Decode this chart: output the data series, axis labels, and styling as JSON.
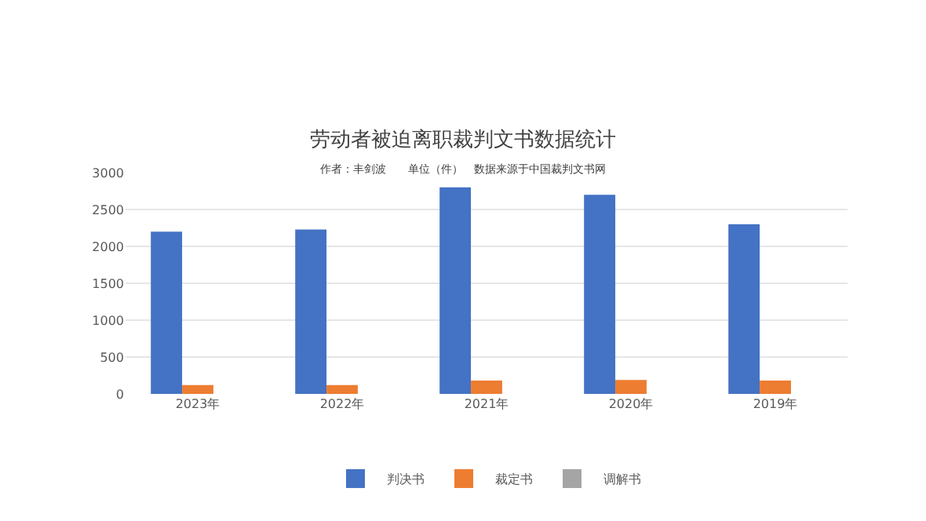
{
  "chart_data": {
    "type": "bar",
    "title": "劳动者被迫离职裁判文书数据统计",
    "subtitle": "作者：丰剑波　　单位（件）　数据来源于中国裁判文书网",
    "categories": [
      "2023年",
      "2022年",
      "2021年",
      "2020年",
      "2019年"
    ],
    "series": [
      {
        "name": "判决书",
        "color": "#4472c4",
        "values": [
          2200,
          2230,
          2800,
          2700,
          2300
        ]
      },
      {
        "name": "裁定书",
        "color": "#ed7d31",
        "values": [
          120,
          120,
          180,
          190,
          180
        ]
      },
      {
        "name": "调解书",
        "color": "#a5a5a5",
        "values": [
          null,
          null,
          null,
          null,
          null
        ]
      }
    ],
    "ylim": [
      0,
      3000
    ],
    "yticks": [
      0,
      500,
      1000,
      1500,
      2000,
      2500,
      3000
    ],
    "grid": "y",
    "legend": "bottom"
  }
}
